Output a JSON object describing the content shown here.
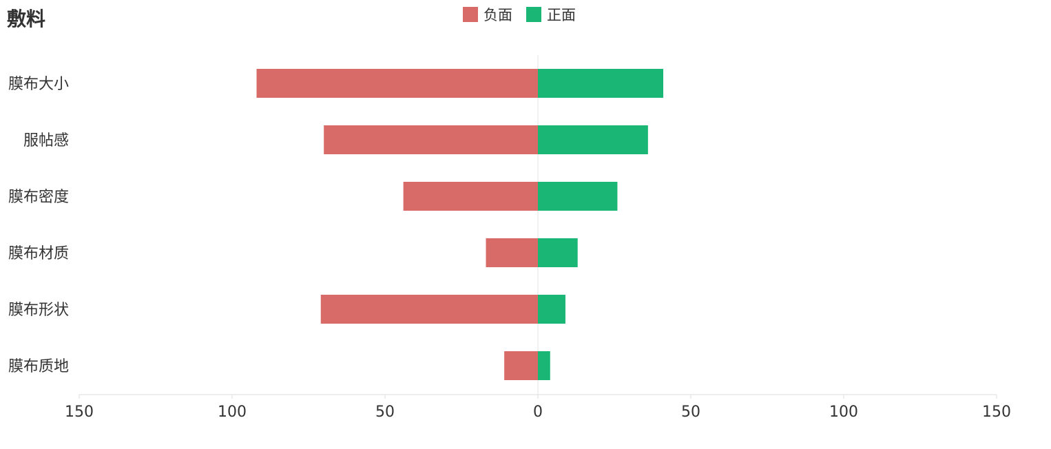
{
  "title": "敷料",
  "colors": {
    "negative": "#D86B67",
    "positive": "#19B676",
    "axis": "#dddddd",
    "zero_line": "#e3e3e3"
  },
  "chart_data": {
    "type": "bar",
    "orientation": "horizontal-diverging",
    "categories": [
      "膜布大小",
      "服帖感",
      "膜布密度",
      "膜布材质",
      "膜布形状",
      "膜布质地"
    ],
    "series": [
      {
        "name": "负面",
        "values": [
          92,
          70,
          44,
          17,
          71,
          11
        ]
      },
      {
        "name": "正面",
        "values": [
          41,
          36,
          26,
          13,
          9,
          4
        ]
      }
    ],
    "xlim": [
      -150,
      150
    ],
    "xticks": [
      -150,
      -100,
      -50,
      0,
      50,
      100,
      150
    ],
    "xtick_labels": [
      "150",
      "100",
      "50",
      "0",
      "50",
      "100",
      "150"
    ],
    "legend": "top-center",
    "grid": false
  }
}
